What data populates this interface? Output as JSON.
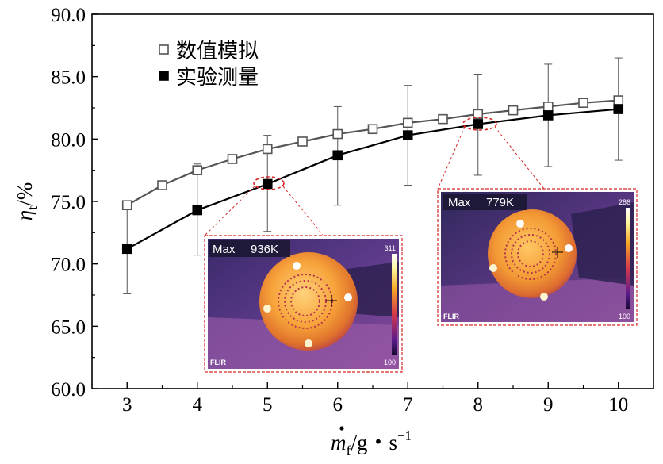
{
  "chart_data": {
    "type": "line",
    "x": [
      3,
      3.5,
      4,
      4.5,
      5,
      5.5,
      6,
      6.5,
      7,
      7.5,
      8,
      8.5,
      9,
      9.5,
      10
    ],
    "series": [
      {
        "name": "数值模拟",
        "marker": "open-square",
        "color": "#555555",
        "x": [
          3,
          3.5,
          4,
          4.5,
          5,
          5.5,
          6,
          6.5,
          7,
          7.5,
          8,
          8.5,
          9,
          9.5,
          10
        ],
        "values": [
          74.7,
          76.3,
          77.5,
          78.4,
          79.2,
          79.8,
          80.4,
          80.8,
          81.3,
          81.6,
          82.0,
          82.3,
          82.6,
          82.9,
          83.1
        ]
      },
      {
        "name": "实验测量",
        "marker": "filled-square",
        "color": "#000000",
        "x": [
          3,
          4,
          5,
          6,
          7,
          8,
          9,
          10
        ],
        "values": [
          71.2,
          74.3,
          76.4,
          78.7,
          80.3,
          81.2,
          81.9,
          82.4
        ],
        "err_upper": [
          74.7,
          78.0,
          80.3,
          82.6,
          84.3,
          85.2,
          86.0,
          86.5
        ],
        "err_lower": [
          67.6,
          70.7,
          72.6,
          74.7,
          76.3,
          77.1,
          77.8,
          78.3
        ]
      }
    ],
    "xlim": [
      2.5,
      10.5
    ],
    "ylim": [
      60.0,
      90.0
    ],
    "xticks": [
      "3",
      "4",
      "5",
      "6",
      "7",
      "8",
      "9",
      "10"
    ],
    "yticks": [
      "60.0",
      "65.0",
      "70.0",
      "75.0",
      "80.0",
      "85.0",
      "90.0"
    ],
    "xlabel": {
      "main": "m",
      "sub": "f",
      "rest": "/g・s",
      "sup": "−1"
    },
    "ylabel": {
      "main": "η",
      "sub": "t",
      "rest": "/%"
    },
    "legend": {
      "position": "top-left"
    },
    "insets": [
      {
        "anchor_x": 5,
        "anchor_y": 76.4,
        "label": "Max",
        "value": "936K",
        "scale_max": "311",
        "scale_min": "100",
        "brand": "FLIR"
      },
      {
        "anchor_x": 8,
        "anchor_y": 81.2,
        "label": "Max",
        "value": "779K",
        "scale_max": "286",
        "scale_min": "100",
        "brand": "FLIR"
      }
    ]
  }
}
